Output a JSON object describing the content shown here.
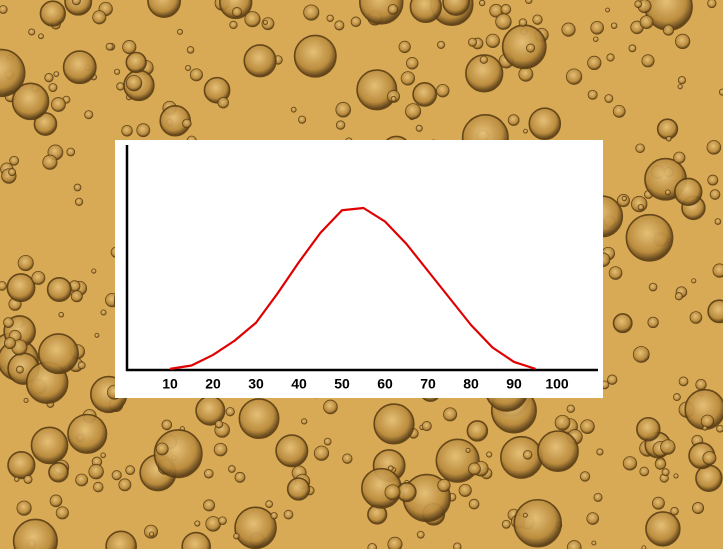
{
  "chart_data": {
    "type": "line",
    "x": [
      10,
      15,
      20,
      25,
      30,
      35,
      40,
      45,
      50,
      55,
      60,
      65,
      70,
      75,
      80,
      85,
      90,
      95
    ],
    "values": [
      0.005,
      0.02,
      0.067,
      0.13,
      0.21,
      0.34,
      0.48,
      0.61,
      0.71,
      0.72,
      0.66,
      0.56,
      0.44,
      0.32,
      0.2,
      0.1,
      0.036,
      0.005
    ],
    "color": "#e00000",
    "xlim": [
      0,
      110
    ],
    "xticks": [
      10,
      20,
      30,
      40,
      50,
      60,
      70,
      80,
      90,
      100
    ],
    "ylim": [
      0,
      1
    ],
    "grid": false
  }
}
